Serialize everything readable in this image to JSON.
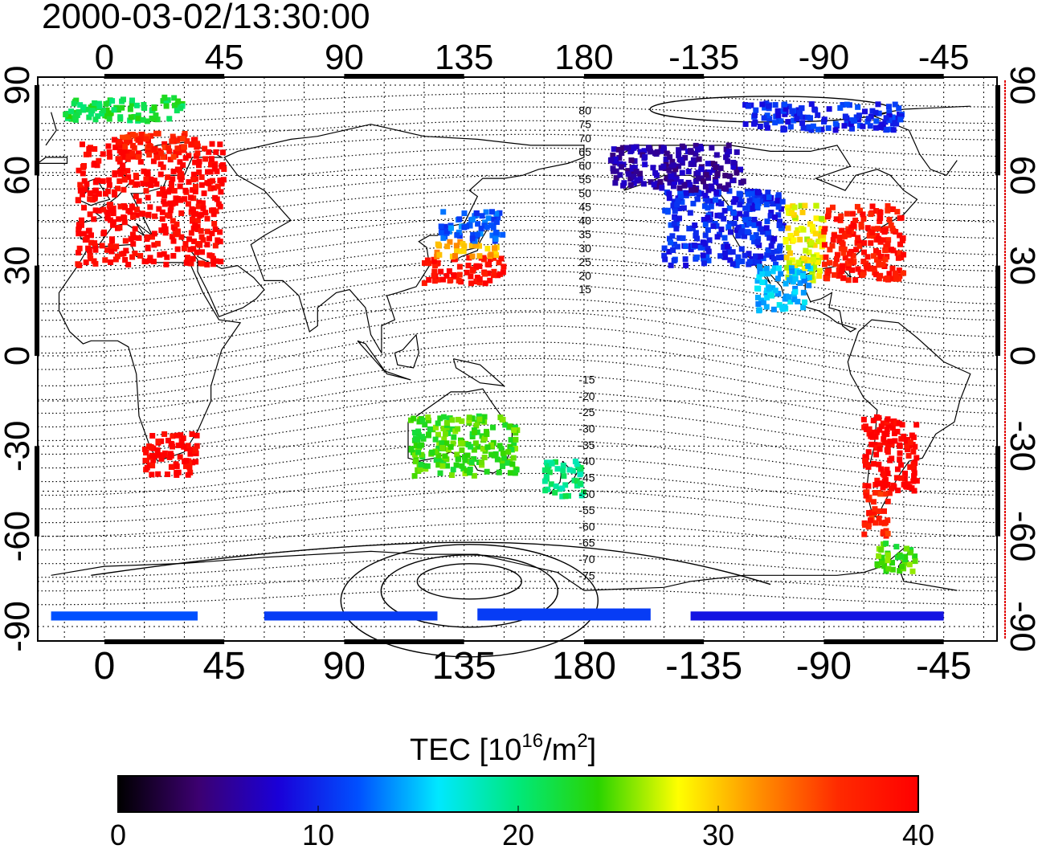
{
  "timestamp": "2000-03-02/13:30:00",
  "axes": {
    "top_lon_ticks": [
      "0",
      "45",
      "90",
      "135",
      "180",
      "-135",
      "-90",
      "-45"
    ],
    "bottom_lon_ticks": [
      "0",
      "45",
      "90",
      "135",
      "180",
      "-135",
      "-90",
      "-45"
    ],
    "left_lat_ticks": [
      "90",
      "60",
      "30",
      "0",
      "-30",
      "-60",
      "-90"
    ],
    "right_lat_ticks": [
      "90",
      "60",
      "30",
      "0",
      "-30",
      "-60",
      "-90"
    ]
  },
  "magnetic_latitude_labels": [
    "80",
    "75",
    "70",
    "65",
    "60",
    "55",
    "50",
    "45",
    "40",
    "35",
    "30",
    "25",
    "20",
    "15",
    "-15",
    "-20",
    "-25",
    "-30",
    "-35",
    "-40",
    "-45",
    "-50",
    "-55",
    "-60",
    "-65",
    "-70",
    "-75"
  ],
  "colorbar": {
    "title_main": "TEC  [10",
    "title_exp": "16",
    "title_unit": "/m",
    "title_exp2": "2",
    "title_close": "]",
    "tick_labels": [
      "0",
      "10",
      "20",
      "30",
      "40"
    ],
    "min": 0,
    "max": 40,
    "colors": [
      "#000000",
      "#3c0070",
      "#1a00d8",
      "#0050ff",
      "#00e8ff",
      "#00e87a",
      "#2ad400",
      "#ffff00",
      "#ff9000",
      "#ff2a00",
      "#ff0000"
    ]
  },
  "tec_regions": [
    {
      "name": "europe",
      "lon": [
        -10,
        45
      ],
      "lat": [
        30,
        72
      ],
      "tec": 40
    },
    {
      "name": "europe-north-edge",
      "lon": [
        5,
        35
      ],
      "lat": [
        66,
        74
      ],
      "tec": 37
    },
    {
      "name": "east-asia-south",
      "lon": [
        120,
        150
      ],
      "lat": [
        24,
        33
      ],
      "tec": 39
    },
    {
      "name": "east-asia-middle",
      "lon": [
        122,
        148
      ],
      "lat": [
        33,
        38
      ],
      "tec": 31
    },
    {
      "name": "east-asia-north",
      "lon": [
        126,
        150
      ],
      "lat": [
        38,
        48
      ],
      "tec": 12
    },
    {
      "name": "north-america-west",
      "lon": [
        -150,
        -105
      ],
      "lat": [
        30,
        55
      ],
      "tec": 10
    },
    {
      "name": "north-america-canada",
      "lon": [
        -170,
        -120
      ],
      "lat": [
        55,
        70
      ],
      "tec": 6
    },
    {
      "name": "north-america-central",
      "lon": [
        -105,
        -90
      ],
      "lat": [
        25,
        50
      ],
      "tec": 28
    },
    {
      "name": "north-america-east",
      "lon": [
        -90,
        -60
      ],
      "lat": [
        25,
        50
      ],
      "tec": 38
    },
    {
      "name": "mexico",
      "lon": [
        -115,
        -95
      ],
      "lat": [
        15,
        30
      ],
      "tec": 15
    },
    {
      "name": "south-america",
      "lon": [
        -75,
        -55
      ],
      "lat": [
        -45,
        -20
      ],
      "tec": 40
    },
    {
      "name": "patagonia",
      "lon": [
        -75,
        -65
      ],
      "lat": [
        -60,
        -45
      ],
      "tec": 37
    },
    {
      "name": "antarctic-peninsula",
      "lon": [
        -70,
        -55
      ],
      "lat": [
        -72,
        -62
      ],
      "tec": 24
    },
    {
      "name": "south-africa",
      "lon": [
        15,
        35
      ],
      "lat": [
        -40,
        -25
      ],
      "tec": 40
    },
    {
      "name": "australia",
      "lon": [
        115,
        155
      ],
      "lat": [
        -40,
        -20
      ],
      "tec": 24
    },
    {
      "name": "new-zealand",
      "lon": [
        165,
        180
      ],
      "lat": [
        -47,
        -35
      ],
      "tec": 20
    },
    {
      "name": "greenland-arctic",
      "lon": [
        -120,
        -60
      ],
      "lat": [
        75,
        84
      ],
      "tec": 10
    },
    {
      "name": "arctic-europe",
      "lon": [
        -15,
        30
      ],
      "lat": [
        78,
        86
      ],
      "tec": 22
    },
    {
      "name": "antarctica-west-band",
      "lon": [
        -20,
        35
      ],
      "lat": [
        -88,
        -85
      ],
      "tec": 12
    },
    {
      "name": "antarctica-central-band",
      "lon": [
        60,
        125
      ],
      "lat": [
        -88,
        -85
      ],
      "tec": 11
    },
    {
      "name": "antarctica-east-band",
      "lon": [
        140,
        205
      ],
      "lat": [
        -88,
        -84
      ],
      "tec": 11
    },
    {
      "name": "antarctica-far-band",
      "lon": [
        -140,
        -45
      ],
      "lat": [
        -88,
        -85
      ],
      "tec": 9
    }
  ]
}
